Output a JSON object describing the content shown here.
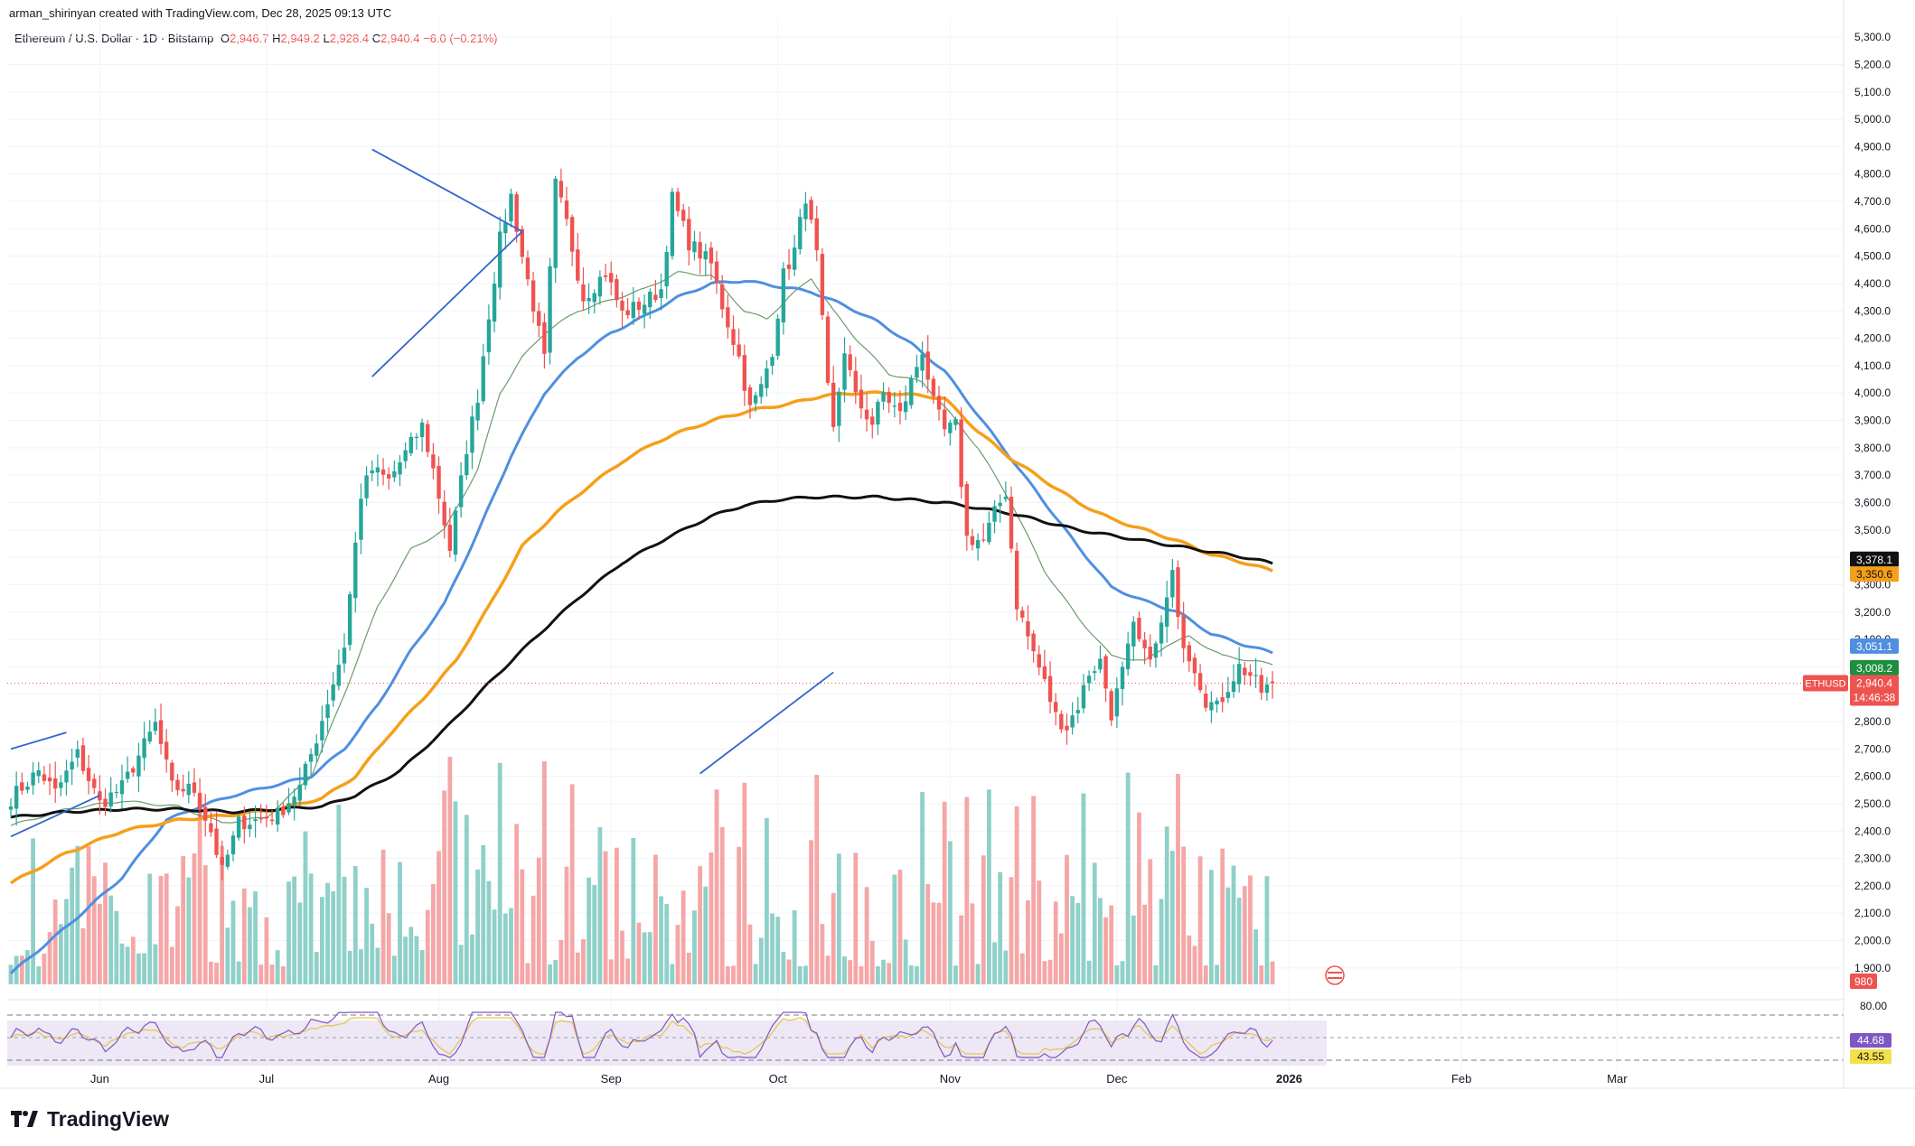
{
  "header": {
    "attribution": "arman_shirinyan created with TradingView.com, Dec 28, 2025 09:13 UTC",
    "symbol": "Ethereum / U.S. Dollar · 1D · Bitstamp",
    "open_label": "O",
    "open": "2,946.7",
    "high_label": "H",
    "high": "2,949.2",
    "low_label": "L",
    "low": "2,928.4",
    "close_label": "C",
    "close": "2,940.4",
    "change": "−6.0 (−0.21%)"
  },
  "brand": {
    "name": "TradingView"
  },
  "colors": {
    "up": "#26a69a",
    "down": "#ef5350",
    "up_volume": "#8fd0c9",
    "down_volume": "#f5a6a6",
    "ma_fast": "#6b9b6b",
    "ma_blue": "#4f8fe0",
    "ma_orange": "#f59f1a",
    "ma_black": "#111111",
    "trendline": "#3366cc",
    "rsi_line": "#7e57c2",
    "rsi_ma": "#e5c84f",
    "rsi_band": "#ede7f6"
  },
  "chart_data": {
    "type": "candlestick",
    "y_range": [
      1850,
      5350
    ],
    "y_ticks": [
      "5,300.0",
      "5,200.0",
      "5,100.0",
      "5,000.0",
      "4,900.0",
      "4,800.0",
      "4,700.0",
      "4,600.0",
      "4,500.0",
      "4,400.0",
      "4,300.0",
      "4,200.0",
      "4,100.0",
      "4,000.0",
      "3,900.0",
      "3,800.0",
      "3,700.0",
      "3,600.0",
      "3,500.0",
      "3,400.0",
      "3,300.0",
      "3,200.0",
      "3,100.0",
      "3,000.0",
      "2,900.0",
      "2,800.0",
      "2,700.0",
      "2,600.0",
      "2,500.0",
      "2,400.0",
      "2,300.0",
      "2,200.0",
      "2,100.0",
      "2,000.0",
      "1,900.0"
    ],
    "y_tick_values": [
      5300,
      5200,
      5100,
      5000,
      4900,
      4800,
      4700,
      4600,
      4500,
      4400,
      4300,
      4200,
      4100,
      4000,
      3900,
      3800,
      3700,
      3600,
      3500,
      3400,
      3300,
      3200,
      3100,
      3000,
      2900,
      2800,
      2700,
      2600,
      2500,
      2400,
      2300,
      2200,
      2100,
      2000,
      1900
    ],
    "x_labels": [
      {
        "label": "Jun",
        "day": 16
      },
      {
        "label": "Jul",
        "day": 46
      },
      {
        "label": "Aug",
        "day": 77
      },
      {
        "label": "Sep",
        "day": 108
      },
      {
        "label": "Oct",
        "day": 138
      },
      {
        "label": "Nov",
        "day": 169
      },
      {
        "label": "Dec",
        "day": 199
      },
      {
        "label": "2026",
        "day": 230
      },
      {
        "label": "Feb",
        "day": 261
      },
      {
        "label": "Mar",
        "day": 289
      }
    ],
    "last_day": 227,
    "price_anchors": [
      [
        0,
        2520
      ],
      [
        5,
        2620
      ],
      [
        8,
        2540
      ],
      [
        12,
        2680
      ],
      [
        16,
        2500
      ],
      [
        20,
        2560
      ],
      [
        26,
        2790
      ],
      [
        29,
        2560
      ],
      [
        33,
        2550
      ],
      [
        36,
        2400
      ],
      [
        38,
        2250
      ],
      [
        41,
        2430
      ],
      [
        44,
        2440
      ],
      [
        48,
        2460
      ],
      [
        52,
        2560
      ],
      [
        55,
        2740
      ],
      [
        60,
        3080
      ],
      [
        63,
        3630
      ],
      [
        65,
        3720
      ],
      [
        68,
        3680
      ],
      [
        71,
        3780
      ],
      [
        74,
        3880
      ],
      [
        76,
        3720
      ],
      [
        79,
        3430
      ],
      [
        82,
        3800
      ],
      [
        84,
        3990
      ],
      [
        86,
        4290
      ],
      [
        88,
        4560
      ],
      [
        90,
        4720
      ],
      [
        92,
        4500
      ],
      [
        94,
        4320
      ],
      [
        96,
        4120
      ],
      [
        98,
        4760
      ],
      [
        100,
        4620
      ],
      [
        103,
        4350
      ],
      [
        107,
        4440
      ],
      [
        110,
        4290
      ],
      [
        114,
        4330
      ],
      [
        117,
        4380
      ],
      [
        119,
        4710
      ],
      [
        122,
        4550
      ],
      [
        126,
        4470
      ],
      [
        128,
        4320
      ],
      [
        131,
        4130
      ],
      [
        133,
        3940
      ],
      [
        135,
        4020
      ],
      [
        137,
        4160
      ],
      [
        139,
        4430
      ],
      [
        141,
        4520
      ],
      [
        143,
        4720
      ],
      [
        145,
        4500
      ],
      [
        147,
        4010
      ],
      [
        148,
        3860
      ],
      [
        150,
        4160
      ],
      [
        152,
        3980
      ],
      [
        155,
        3890
      ],
      [
        157,
        4000
      ],
      [
        160,
        3920
      ],
      [
        162,
        4040
      ],
      [
        164,
        4160
      ],
      [
        166,
        3960
      ],
      [
        168,
        3860
      ],
      [
        170,
        3880
      ],
      [
        172,
        3470
      ],
      [
        175,
        3460
      ],
      [
        177,
        3560
      ],
      [
        179,
        3640
      ],
      [
        181,
        3230
      ],
      [
        183,
        3110
      ],
      [
        186,
        2940
      ],
      [
        188,
        2820
      ],
      [
        190,
        2780
      ],
      [
        192,
        2860
      ],
      [
        194,
        2980
      ],
      [
        196,
        3020
      ],
      [
        198,
        2830
      ],
      [
        200,
        2980
      ],
      [
        202,
        3140
      ],
      [
        204,
        3040
      ],
      [
        206,
        3070
      ],
      [
        208,
        3240
      ],
      [
        209,
        3330
      ],
      [
        211,
        3090
      ],
      [
        213,
        3000
      ],
      [
        215,
        2880
      ],
      [
        217,
        2850
      ],
      [
        219,
        2930
      ],
      [
        221,
        3000
      ],
      [
        223,
        2970
      ],
      [
        225,
        2910
      ],
      [
        227,
        2940
      ]
    ],
    "ma_fast_anchors": [
      [
        0,
        2420
      ],
      [
        10,
        2480
      ],
      [
        20,
        2510
      ],
      [
        30,
        2490
      ],
      [
        38,
        2430
      ],
      [
        46,
        2450
      ],
      [
        54,
        2600
      ],
      [
        60,
        2900
      ],
      [
        66,
        3220
      ],
      [
        72,
        3430
      ],
      [
        78,
        3500
      ],
      [
        84,
        3720
      ],
      [
        88,
        4000
      ],
      [
        92,
        4130
      ],
      [
        96,
        4220
      ],
      [
        102,
        4300
      ],
      [
        108,
        4340
      ],
      [
        114,
        4380
      ],
      [
        120,
        4440
      ],
      [
        126,
        4430
      ],
      [
        132,
        4300
      ],
      [
        136,
        4270
      ],
      [
        140,
        4350
      ],
      [
        144,
        4420
      ],
      [
        148,
        4300
      ],
      [
        152,
        4200
      ],
      [
        158,
        4070
      ],
      [
        164,
        4040
      ],
      [
        168,
        3950
      ],
      [
        174,
        3800
      ],
      [
        180,
        3600
      ],
      [
        186,
        3350
      ],
      [
        192,
        3180
      ],
      [
        198,
        3040
      ],
      [
        204,
        3020
      ],
      [
        208,
        3080
      ],
      [
        212,
        3110
      ],
      [
        218,
        3040
      ],
      [
        224,
        3020
      ],
      [
        227,
        3008
      ]
    ],
    "ma_blue_anchors": [
      [
        0,
        1880
      ],
      [
        10,
        2050
      ],
      [
        20,
        2230
      ],
      [
        28,
        2440
      ],
      [
        34,
        2490
      ],
      [
        40,
        2530
      ],
      [
        46,
        2560
      ],
      [
        54,
        2600
      ],
      [
        60,
        2700
      ],
      [
        66,
        2860
      ],
      [
        72,
        3060
      ],
      [
        78,
        3230
      ],
      [
        84,
        3490
      ],
      [
        90,
        3770
      ],
      [
        96,
        4000
      ],
      [
        102,
        4130
      ],
      [
        108,
        4220
      ],
      [
        114,
        4280
      ],
      [
        120,
        4350
      ],
      [
        126,
        4400
      ],
      [
        132,
        4410
      ],
      [
        138,
        4390
      ],
      [
        144,
        4370
      ],
      [
        150,
        4320
      ],
      [
        156,
        4260
      ],
      [
        162,
        4180
      ],
      [
        168,
        4080
      ],
      [
        174,
        3920
      ],
      [
        180,
        3760
      ],
      [
        186,
        3600
      ],
      [
        192,
        3440
      ],
      [
        198,
        3290
      ],
      [
        204,
        3240
      ],
      [
        210,
        3200
      ],
      [
        216,
        3120
      ],
      [
        222,
        3080
      ],
      [
        227,
        3051
      ]
    ],
    "ma_orange_anchors": [
      [
        0,
        2210
      ],
      [
        10,
        2320
      ],
      [
        20,
        2400
      ],
      [
        30,
        2440
      ],
      [
        40,
        2460
      ],
      [
        48,
        2480
      ],
      [
        56,
        2520
      ],
      [
        62,
        2600
      ],
      [
        68,
        2750
      ],
      [
        74,
        2880
      ],
      [
        80,
        3020
      ],
      [
        86,
        3220
      ],
      [
        92,
        3440
      ],
      [
        98,
        3560
      ],
      [
        104,
        3660
      ],
      [
        110,
        3750
      ],
      [
        116,
        3820
      ],
      [
        122,
        3870
      ],
      [
        128,
        3910
      ],
      [
        134,
        3940
      ],
      [
        140,
        3960
      ],
      [
        146,
        3990
      ],
      [
        152,
        4000
      ],
      [
        158,
        4000
      ],
      [
        164,
        3990
      ],
      [
        168,
        3980
      ],
      [
        174,
        3860
      ],
      [
        180,
        3760
      ],
      [
        186,
        3680
      ],
      [
        192,
        3600
      ],
      [
        198,
        3540
      ],
      [
        204,
        3500
      ],
      [
        210,
        3460
      ],
      [
        216,
        3410
      ],
      [
        222,
        3380
      ],
      [
        227,
        3350.6
      ]
    ],
    "ma_black_anchors": [
      [
        0,
        2450
      ],
      [
        10,
        2470
      ],
      [
        20,
        2480
      ],
      [
        30,
        2480
      ],
      [
        40,
        2470
      ],
      [
        48,
        2480
      ],
      [
        56,
        2490
      ],
      [
        62,
        2530
      ],
      [
        70,
        2620
      ],
      [
        78,
        2770
      ],
      [
        86,
        2940
      ],
      [
        94,
        3100
      ],
      [
        102,
        3250
      ],
      [
        110,
        3380
      ],
      [
        118,
        3470
      ],
      [
        126,
        3550
      ],
      [
        132,
        3590
      ],
      [
        138,
        3610
      ],
      [
        144,
        3620
      ],
      [
        150,
        3620
      ],
      [
        156,
        3620
      ],
      [
        162,
        3610
      ],
      [
        168,
        3600
      ],
      [
        174,
        3580
      ],
      [
        180,
        3560
      ],
      [
        186,
        3530
      ],
      [
        192,
        3500
      ],
      [
        198,
        3480
      ],
      [
        204,
        3460
      ],
      [
        210,
        3440
      ],
      [
        216,
        3420
      ],
      [
        222,
        3400
      ],
      [
        227,
        3378.1
      ]
    ],
    "trendlines": [
      {
        "from": [
          0,
          2700
        ],
        "to": [
          10,
          2760
        ]
      },
      {
        "from": [
          0,
          2380
        ],
        "to": [
          16,
          2530
        ]
      },
      {
        "from": [
          65,
          4890
        ],
        "to": [
          92,
          4590
        ]
      },
      {
        "from": [
          65,
          4060
        ],
        "to": [
          92,
          4590
        ]
      },
      {
        "from": [
          124,
          2610
        ],
        "to": [
          148,
          2980
        ]
      }
    ],
    "price_tags": [
      {
        "value": 3378.1,
        "label": "3,378.1",
        "bg": "#111111",
        "fg": "#ffffff"
      },
      {
        "value": 3350.6,
        "label": "3,350.6",
        "bg": "#f59f1a",
        "fg": "#111111"
      },
      {
        "value": 3051.1,
        "label": "3,051.1",
        "bg": "#4f8fe0",
        "fg": "#ffffff"
      },
      {
        "value": 3008.2,
        "label": "3,008.2",
        "bg": "#1e8e3e",
        "fg": "#ffffff"
      },
      {
        "value": 2940.4,
        "label": "2,940.4",
        "bg": "#ef5350",
        "fg": "#ffffff",
        "symbol": "ETHUSD",
        "countdown": "14:46:38"
      }
    ],
    "volume_label": "980",
    "rsi": {
      "levels": [
        {
          "value": 80,
          "label": "80.00"
        }
      ],
      "tags": [
        {
          "value": 44.68,
          "label": "44.68",
          "bg": "#7e57c2",
          "fg": "#ffffff"
        },
        {
          "value": 43.55,
          "label": "43.55",
          "bg": "#f3e14b",
          "fg": "#111111"
        }
      ]
    }
  }
}
